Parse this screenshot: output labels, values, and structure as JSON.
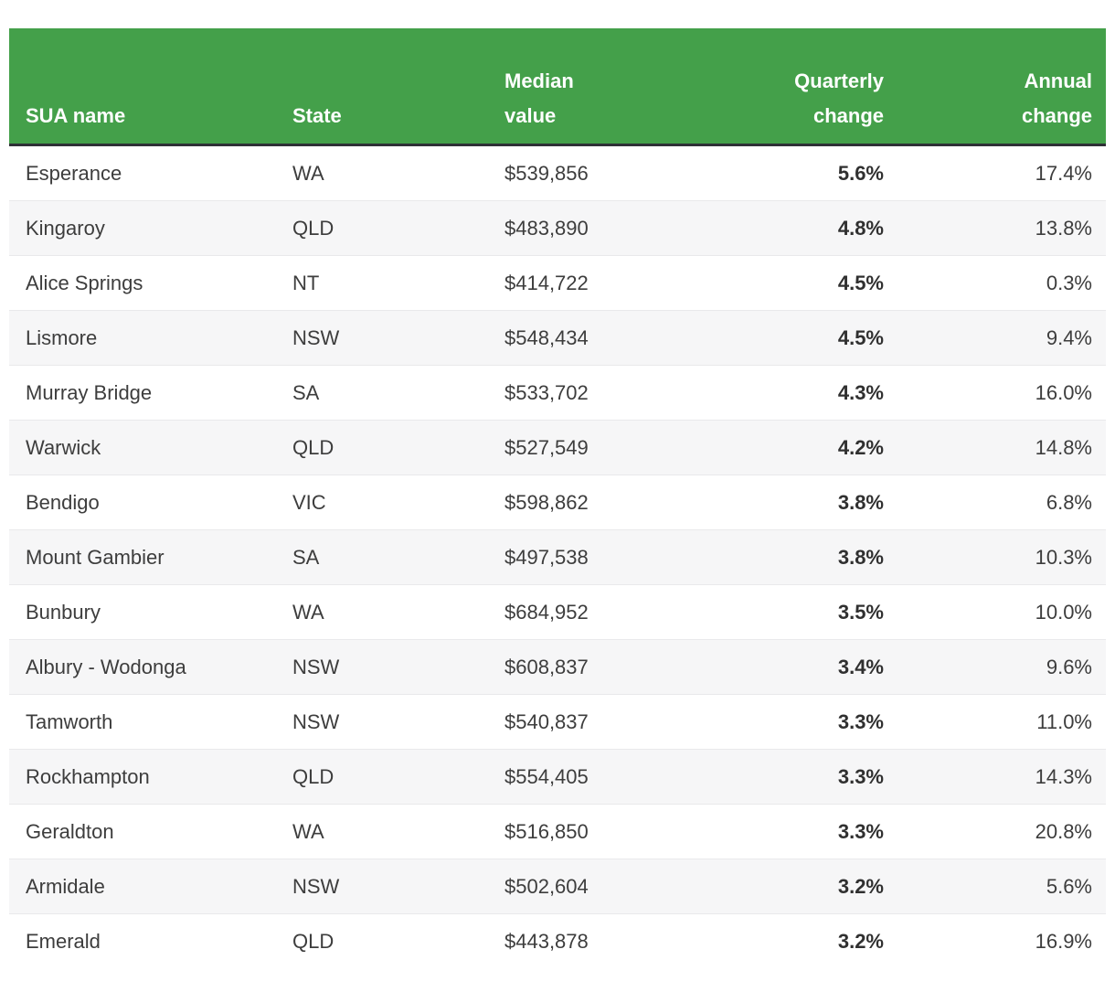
{
  "colors": {
    "header_bg": "#44a04a",
    "header_text": "#ffffff",
    "header_border": "#2e3036",
    "row_alt_bg": "#f6f6f7",
    "row_divider": "#e9e9eb",
    "text": "#3d3d3d",
    "text_bold": "#303030"
  },
  "chart_data": {
    "type": "table",
    "title": "",
    "columns": [
      {
        "id": "sua",
        "label": "SUA name"
      },
      {
        "id": "state",
        "label": "State"
      },
      {
        "id": "median",
        "label": "Median\nvalue"
      },
      {
        "id": "quarterly",
        "label": "Quarterly\nchange"
      },
      {
        "id": "annual",
        "label": "Annual\nchange"
      }
    ],
    "rows": [
      {
        "sua": "Esperance",
        "state": "WA",
        "median": "$539,856",
        "quarterly": "5.6%",
        "annual": "17.4%"
      },
      {
        "sua": "Kingaroy",
        "state": "QLD",
        "median": "$483,890",
        "quarterly": "4.8%",
        "annual": "13.8%"
      },
      {
        "sua": "Alice Springs",
        "state": "NT",
        "median": "$414,722",
        "quarterly": "4.5%",
        "annual": "0.3%"
      },
      {
        "sua": "Lismore",
        "state": "NSW",
        "median": "$548,434",
        "quarterly": "4.5%",
        "annual": "9.4%"
      },
      {
        "sua": "Murray Bridge",
        "state": "SA",
        "median": "$533,702",
        "quarterly": "4.3%",
        "annual": "16.0%"
      },
      {
        "sua": "Warwick",
        "state": "QLD",
        "median": "$527,549",
        "quarterly": "4.2%",
        "annual": "14.8%"
      },
      {
        "sua": "Bendigo",
        "state": "VIC",
        "median": "$598,862",
        "quarterly": "3.8%",
        "annual": "6.8%"
      },
      {
        "sua": "Mount Gambier",
        "state": "SA",
        "median": "$497,538",
        "quarterly": "3.8%",
        "annual": "10.3%"
      },
      {
        "sua": "Bunbury",
        "state": "WA",
        "median": "$684,952",
        "quarterly": "3.5%",
        "annual": "10.0%"
      },
      {
        "sua": "Albury - Wodonga",
        "state": "NSW",
        "median": "$608,837",
        "quarterly": "3.4%",
        "annual": "9.6%"
      },
      {
        "sua": "Tamworth",
        "state": "NSW",
        "median": "$540,837",
        "quarterly": "3.3%",
        "annual": "11.0%"
      },
      {
        "sua": "Rockhampton",
        "state": "QLD",
        "median": "$554,405",
        "quarterly": "3.3%",
        "annual": "14.3%"
      },
      {
        "sua": "Geraldton",
        "state": "WA",
        "median": "$516,850",
        "quarterly": "3.3%",
        "annual": "20.8%"
      },
      {
        "sua": "Armidale",
        "state": "NSW",
        "median": "$502,604",
        "quarterly": "3.2%",
        "annual": "5.6%"
      },
      {
        "sua": "Emerald",
        "state": "QLD",
        "median": "$443,878",
        "quarterly": "3.2%",
        "annual": "16.9%"
      }
    ]
  }
}
